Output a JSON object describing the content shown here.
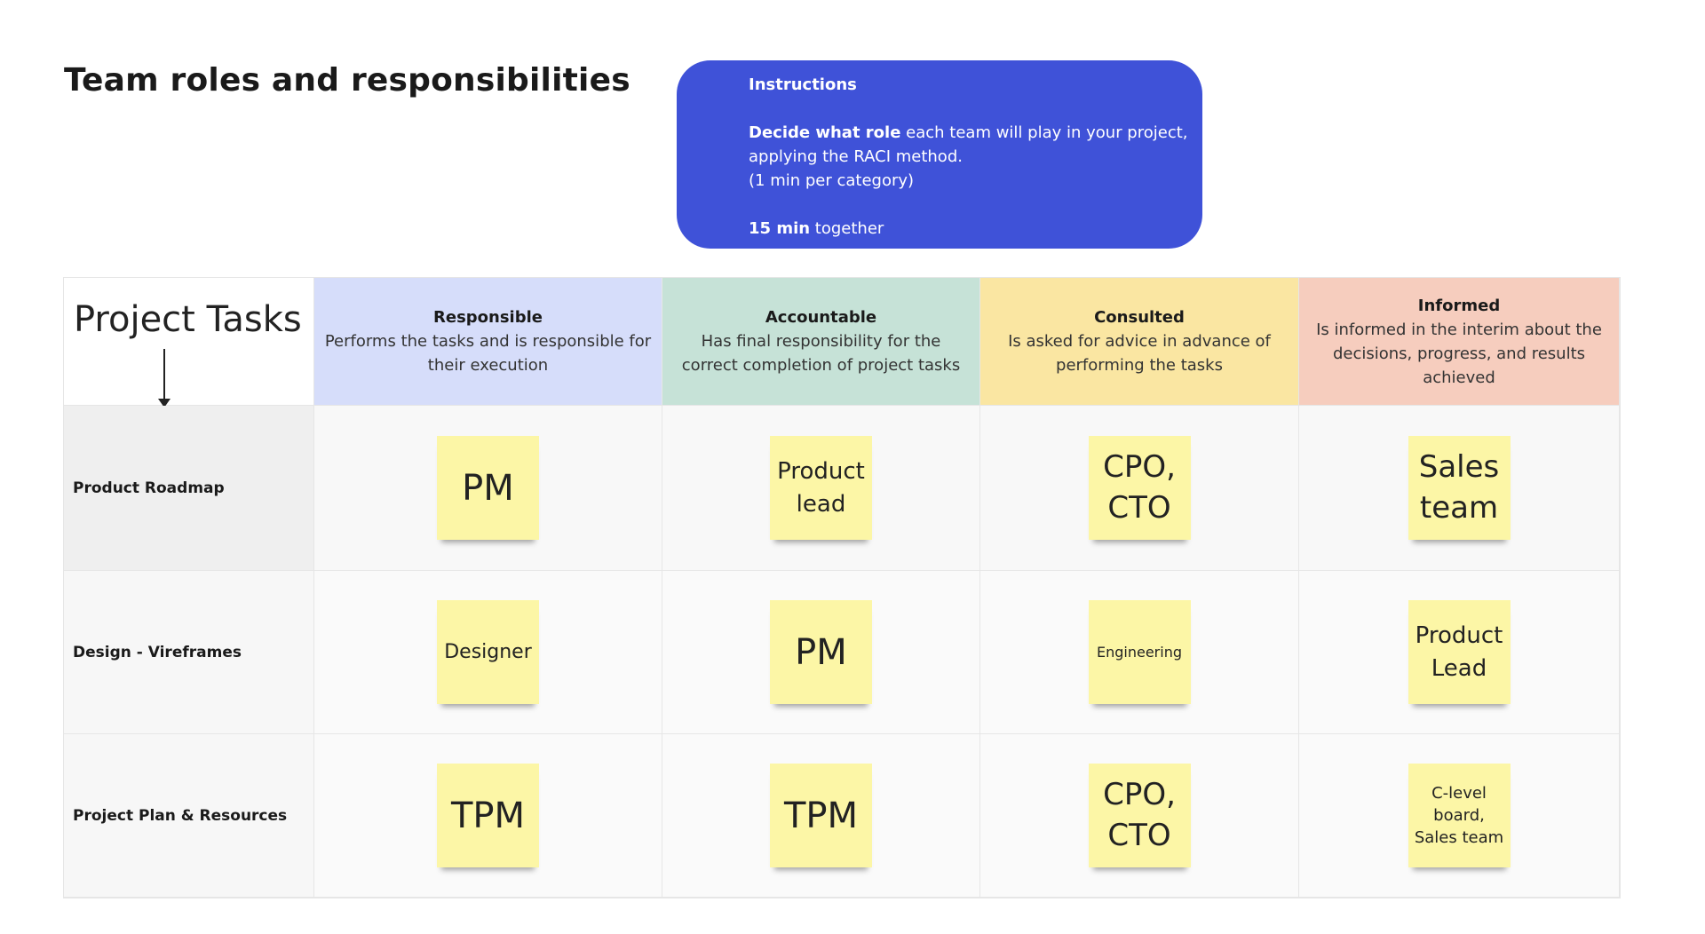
{
  "title": "Team roles and responsibilities",
  "instructions": {
    "heading": "Instructions",
    "line1_bold": "Decide what role",
    "line1_rest": " each team will play in your project,",
    "line2": "applying the RACI method.",
    "line3": "(1 min per category)",
    "line4_bold": "15 min",
    "line4_rest": " together",
    "color": "#3f52d8"
  },
  "table": {
    "corner_label": "Project Tasks",
    "columns": [
      {
        "title": "Responsible",
        "desc": "Performs the tasks and is responsible for their execution",
        "color": "#d6ddfa"
      },
      {
        "title": "Accountable",
        "desc": "Has final responsibility for the correct completion of project tasks",
        "color": "#c6e2d7"
      },
      {
        "title": "Consulted",
        "desc": "Is asked for advice in advance of performing the tasks",
        "color": "#fae6a2"
      },
      {
        "title": "Informed",
        "desc": "Is informed in the interim about the decisions, progress, and results achieved",
        "color": "#f6cdbe"
      }
    ],
    "rows": [
      {
        "task": "Product Roadmap",
        "cells": [
          "PM",
          "Product lead",
          "CPO, CTO",
          "Sales team"
        ]
      },
      {
        "task": "Design - Vireframes",
        "cells": [
          "Designer",
          "PM",
          "Engineering",
          "Product Lead"
        ]
      },
      {
        "task": "Project Plan & Resources",
        "cells": [
          "TPM",
          "TPM",
          "CPO, CTO",
          "C-level board, Sales team"
        ]
      }
    ]
  }
}
